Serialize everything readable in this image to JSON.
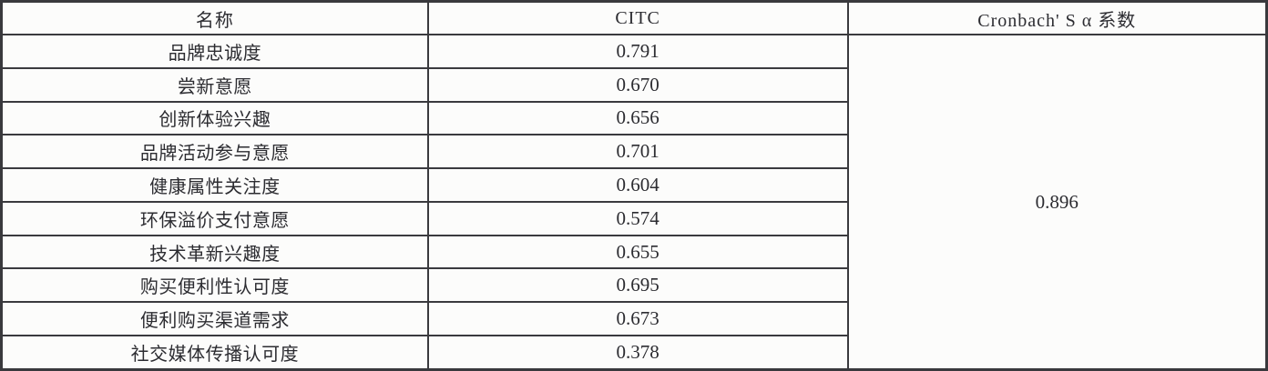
{
  "table": {
    "border_color": "#3a3a3e",
    "text_color": "#2c2c31",
    "background_color": "#fcfcfb",
    "header": {
      "name": "名称",
      "citc": "CITC",
      "cronbach": "Cronbach' S α 系数"
    },
    "rows": [
      {
        "name": "品牌忠诚度",
        "citc": "0.791"
      },
      {
        "name": "尝新意愿",
        "citc": "0.670"
      },
      {
        "name": "创新体验兴趣",
        "citc": "0.656"
      },
      {
        "name": "品牌活动参与意愿",
        "citc": "0.701"
      },
      {
        "name": "健康属性关注度",
        "citc": "0.604"
      },
      {
        "name": "环保溢价支付意愿",
        "citc": "0.574"
      },
      {
        "name": "技术革新兴趣度",
        "citc": "0.655"
      },
      {
        "name": "购买便利性认可度",
        "citc": "0.695"
      },
      {
        "name": "便利购买渠道需求",
        "citc": "0.673"
      },
      {
        "name": "社交媒体传播认可度",
        "citc": "0.378"
      }
    ],
    "cronbach_value": "0.896"
  },
  "chart_data": {
    "type": "table",
    "title": "",
    "columns": [
      "名称",
      "CITC",
      "Cronbach' S α 系数"
    ],
    "rows": [
      [
        "品牌忠诚度",
        0.791
      ],
      [
        "尝新意愿",
        0.67
      ],
      [
        "创新体验兴趣",
        0.656
      ],
      [
        "品牌活动参与意愿",
        0.701
      ],
      [
        "健康属性关注度",
        0.604
      ],
      [
        "环保溢价支付意愿",
        0.574
      ],
      [
        "技术革新兴趣度",
        0.655
      ],
      [
        "购买便利性认可度",
        0.695
      ],
      [
        "便利购买渠道需求",
        0.673
      ],
      [
        "社交媒体传播认可度",
        0.378
      ]
    ],
    "merged_cells": [
      {
        "column": "Cronbach' S α 系数",
        "spans_rows": "all 10 data rows",
        "value": 0.896
      }
    ]
  }
}
